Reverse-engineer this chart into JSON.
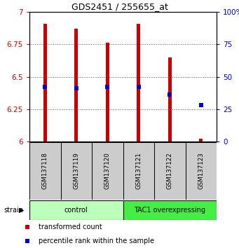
{
  "title": "GDS2451 / 255655_at",
  "samples": [
    "GSM137118",
    "GSM137119",
    "GSM137120",
    "GSM137121",
    "GSM137122",
    "GSM137123"
  ],
  "red_values": [
    6.91,
    6.87,
    6.76,
    6.91,
    6.65,
    6.02
  ],
  "blue_values_left": [
    6.42,
    6.41,
    6.42,
    6.42,
    6.36,
    6.28
  ],
  "y_min": 6.0,
  "y_max": 7.0,
  "y_ticks": [
    6.0,
    6.25,
    6.5,
    6.75,
    7.0
  ],
  "y_tick_labels": [
    "6",
    "6.25",
    "6.5",
    "6.75",
    "7"
  ],
  "right_y_ticks": [
    0,
    25,
    50,
    75,
    100
  ],
  "right_y_tick_labels": [
    "0",
    "25",
    "50",
    "75",
    "100%"
  ],
  "groups": [
    {
      "label": "control",
      "indices": [
        0,
        1,
        2
      ],
      "color": "#bbffbb"
    },
    {
      "label": "TAC1 overexpressing",
      "indices": [
        3,
        4,
        5
      ],
      "color": "#44ee44"
    }
  ],
  "bar_color": "#cc0000",
  "blue_color": "#0000cc",
  "bar_width": 0.12,
  "ylabel_color": "#cc0000",
  "right_ylabel_color": "#0000cc",
  "legend_red_label": "transformed count",
  "legend_blue_label": "percentile rank within the sample"
}
